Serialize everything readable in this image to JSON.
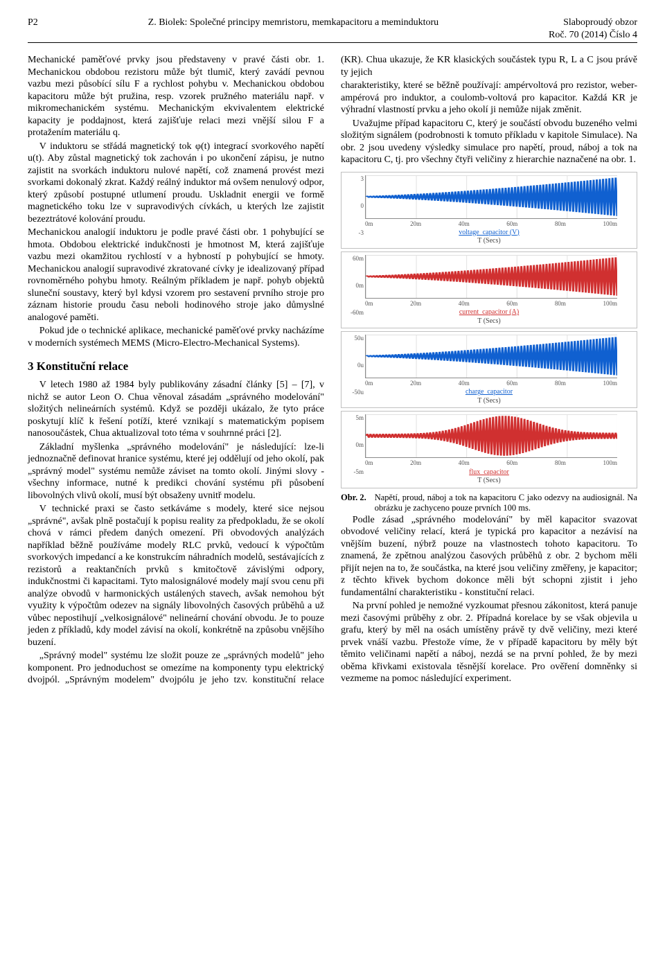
{
  "header": {
    "page_left": "P2",
    "title_center": "Z. Biolek: Společné principy memristoru, memkapacitoru a meminduktoru",
    "journal_top": "Slaboproudý obzor",
    "journal_bottom": "Roč. 70 (2014) Číslo 4"
  },
  "body": {
    "p1": "Mechanické paměťové prvky jsou představeny v pravé části obr. 1. Mechanickou obdobou rezistoru může být tlumič, který zavádí pevnou vazbu mezi působící sílu F a rychlost pohybu v. Mechanickou obdobou kapacitoru může být pružina, resp. vzorek pružného materiálu např. v mikromechanickém systému. Mechanickým ekvivalentem elektrické kapacity je poddajnost, která zajišťuje relaci mezi vnější silou F a protažením materiálu q.",
    "p2": "V induktoru se střádá magnetický tok φ(t) integrací svorkového napětí u(t). Aby zůstal magnetický tok zachován i po ukončení zápisu, je nutno zajistit na svorkách induktoru nulové napětí, což znamená provést mezi svorkami dokonalý zkrat. Každý reálný induktor má ovšem nenulový odpor, který způsobí postupné utlumení proudu. Uskladnit energii ve formě magnetického toku lze v supravodivých cívkách, u kterých lze zajistit bezeztrátové kolování proudu.",
    "p3": "Mechanickou analogií induktoru je podle pravé části obr. 1 pohybující se hmota. Obdobou elektrické indukčnosti je hmotnost M, která zajišťuje vazbu mezi okamžitou rychlostí v a hybností p pohybující se hmoty. Mechanickou analogií supravodivé zkratované cívky je idealizovaný případ rovnoměrného pohybu hmoty. Reálným příkladem je např. pohyb objektů sluneční soustavy, který byl kdysi vzorem pro sestavení prvního stroje pro záznam historie proudu času neboli hodinového stroje jako důmyslné analogové paměti.",
    "p4": "Pokud jde o technické aplikace, mechanické paměťové prvky nacházíme v moderních systémech MEMS (Micro-Electro-Mechanical Systems).",
    "sec3": "3   Konstituční relace",
    "p5": "V letech 1980 až 1984 byly publikovány zásadní články [5] – [7], v nichž se autor Leon O. Chua věnoval zásadám „správného modelování\" složitých nelineárních systémů. Když se později ukázalo, že tyto práce poskytují klíč k řešení potíží, které vznikají s matematickým popisem nanosoučástek, Chua aktualizoval toto téma v souhrnné práci [2].",
    "p6": "Základní myšlenka „správného modelování\" je následující: lze-li jednoznačně definovat hranice systému, které jej oddělují od jeho okolí, pak „správný model\" systému nemůže záviset na tomto okolí. Jinými slovy - všechny informace, nutné k predikci chování systému při působení libovolných vlivů okolí, musí být obsaženy uvnitř modelu.",
    "p7": "V technické praxi se často setkáváme s modely, které sice nejsou „správné\", avšak plně postačují k popisu reality za předpokladu, že se okolí chová v rámci předem daných omezení. Při obvodových analýzách například běžně používáme modely RLC prvků, vedoucí k výpočtům svorkových impedancí a ke konstrukcím náhradních modelů, sestávajících z rezistorů a reaktančních prvků s kmitočtově závislými odpory, indukčnostmi či kapacitami. Tyto malosignálové modely mají svou cenu při analýze obvodů v harmonických ustálených stavech, avšak nemohou být využity k výpočtům odezev na signály libovolných časových průběhů a už vůbec nepostihují „velkosignálové\" nelineární chování obvodu. Je to pouze jeden z příkladů, kdy model závisí na okolí, konkrétně na způsobu vnějšího buzení.",
    "p8": "„Správný model\" systému lze složit pouze ze „správných modelů\" jeho komponent. Pro jednoduchost se omezíme na komponenty typu elektrický dvojpól. „Správným modelem\" dvojpólu je jeho tzv. konstituční relace (KR). Chua ukazuje, že KR klasických součástek typu R, L a C jsou právě ty jejich",
    "p9": "charakteristiky, které se běžně používají: ampérvoltová pro rezistor, weber-ampérová pro induktor, a coulomb-voltová pro kapacitor. Každá KR je výhradní vlastností prvku a jeho okolí ji nemůže nijak změnit.",
    "p10": "Uvažujme případ kapacitoru C, který je součástí obvodu buzeného velmi složitým signálem (podrobnosti k tomuto příkladu v kapitole Simulace). Na obr. 2 jsou uvedeny výsledky simulace pro napětí, proud, náboj a tok na kapacitoru C, tj. pro všechny čtyři veličiny z hierarchie naznačené na obr. 1.",
    "fig2_label": "Obr. 2.",
    "fig2_caption": "Napětí, proud, náboj a tok na kapacitoru C jako odezvy na audiosignál. Na obrázku je zachyceno pouze prvních 100 ms.",
    "p11": "Podle zásad „správného modelování\" by měl kapacitor svazovat obvodové veličiny relací, která je typická pro kapacitor a nezávisí na vnějším buzení, nýbrž pouze na vlastnostech tohoto kapacitoru. To znamená, že zpětnou analýzou časových průběhů z obr. 2 bychom měli přijít nejen na to, že součástka, na které jsou veličiny změřeny, je kapacitor; z těchto křivek bychom dokonce měli být schopni zjistit i jeho fundamentální charakteristiku - konstituční relaci.",
    "p12": "Na první pohled je nemožné vyzkoumat přesnou zákonitost, která panuje mezi časovými průběhy z obr. 2. Případná korelace by se však objevila u grafu, který by měl na osách umístěny právě ty dvě veličiny, mezi které prvek vnáší vazbu. Přestože víme, že v případě kapacitoru by měly být těmito veličinami napětí a náboj, nezdá se na první pohled, že by mezi oběma křivkami existovala těsnější korelace. Pro ověření domněnky si vezmeme na pomoc následující experiment."
  },
  "charts": [
    {
      "yticks": [
        "3",
        "0",
        "-3"
      ],
      "xticks": [
        "0m",
        "20m",
        "40m",
        "60m",
        "80m",
        "100m"
      ],
      "signal_label": "voltage_capacitor (V)",
      "signal_color": "#1060d0",
      "axis_label": "T (Secs)",
      "envelope": "growing",
      "amp_start": 0.05,
      "amp_end": 1.0
    },
    {
      "yticks": [
        "60m",
        "0m",
        "-60m"
      ],
      "xticks": [
        "0m",
        "20m",
        "40m",
        "60m",
        "80m",
        "100m"
      ],
      "signal_label": "current_capacitor (A)",
      "signal_color": "#d03030",
      "axis_label": "T (Secs)",
      "envelope": "growing",
      "amp_start": 0.05,
      "amp_end": 1.0
    },
    {
      "yticks": [
        "50u",
        "0u",
        "-50u"
      ],
      "xticks": [
        "0m",
        "20m",
        "40m",
        "60m",
        "80m",
        "100m"
      ],
      "signal_label": "charge_capacitor",
      "signal_color": "#1060d0",
      "axis_label": "T (Secs)",
      "envelope": "growing",
      "amp_start": 0.05,
      "amp_end": 1.0
    },
    {
      "yticks": [
        "5m",
        "0m",
        "-5m"
      ],
      "xticks": [
        "0m",
        "20m",
        "40m",
        "60m",
        "80m",
        "100m"
      ],
      "signal_label": "flux_capacitor",
      "signal_color": "#d03030",
      "axis_label": "T (Secs)",
      "envelope": "mid-bulge",
      "amp_start": 0.1,
      "amp_end": 0.3
    }
  ]
}
